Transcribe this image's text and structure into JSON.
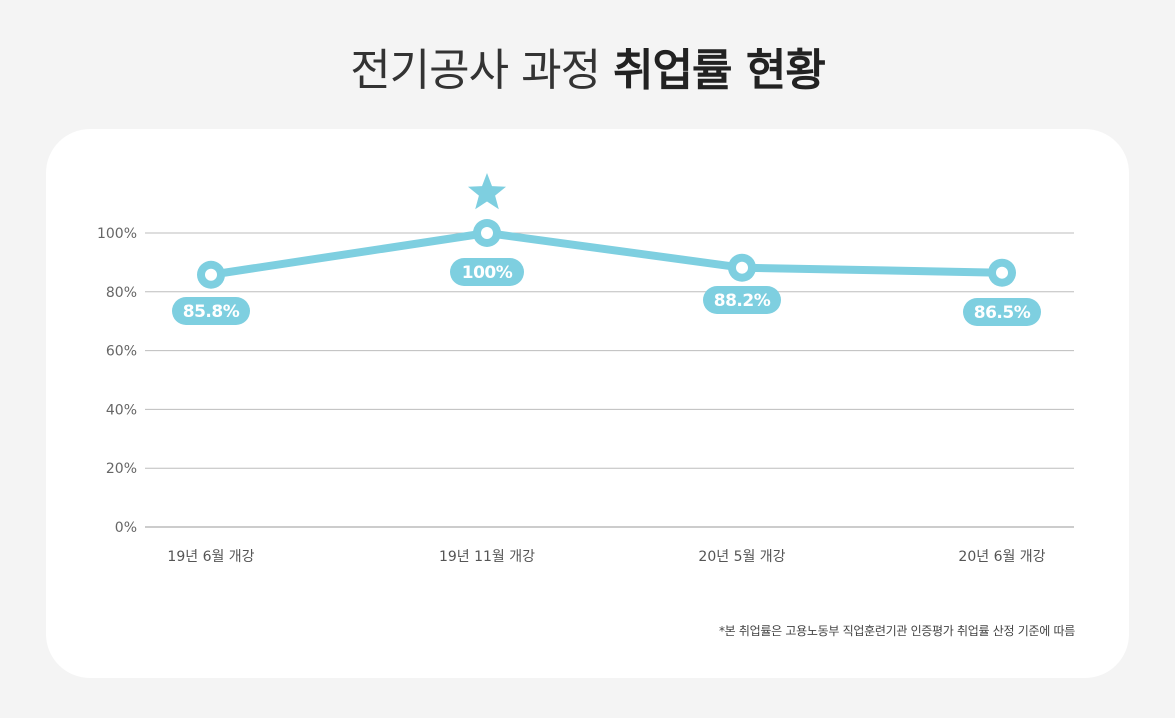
{
  "title": {
    "regular": "전기공사 과정",
    "bold": "취업률 현황"
  },
  "footnote": "*본 취업률은 고용노동부 직업훈련기관 인증평가 취업률 산정 기준에 따름",
  "colors": {
    "line": "#7ecfe0",
    "grid": "#bdbdbd",
    "axis": "#555555",
    "label_text": "#ffffff"
  },
  "chart_data": {
    "type": "line",
    "title": "취업률 현황",
    "categories": [
      "19년 6월 개강",
      "19년 11월 개강",
      "20년 5월 개강",
      "20년 6월 개강"
    ],
    "series": [
      {
        "values": [
          85.8,
          100,
          88.2,
          86.5
        ]
      }
    ],
    "data_labels": [
      "85.8%",
      "100%",
      "88.2%",
      "86.5%"
    ],
    "highlight": {
      "category": "19년 11월 개강",
      "icon": "star-icon"
    },
    "yticks": [
      "0%",
      "20%",
      "40%",
      "60%",
      "80%",
      "100%"
    ],
    "ylim": [
      0,
      100
    ],
    "grid": true
  }
}
